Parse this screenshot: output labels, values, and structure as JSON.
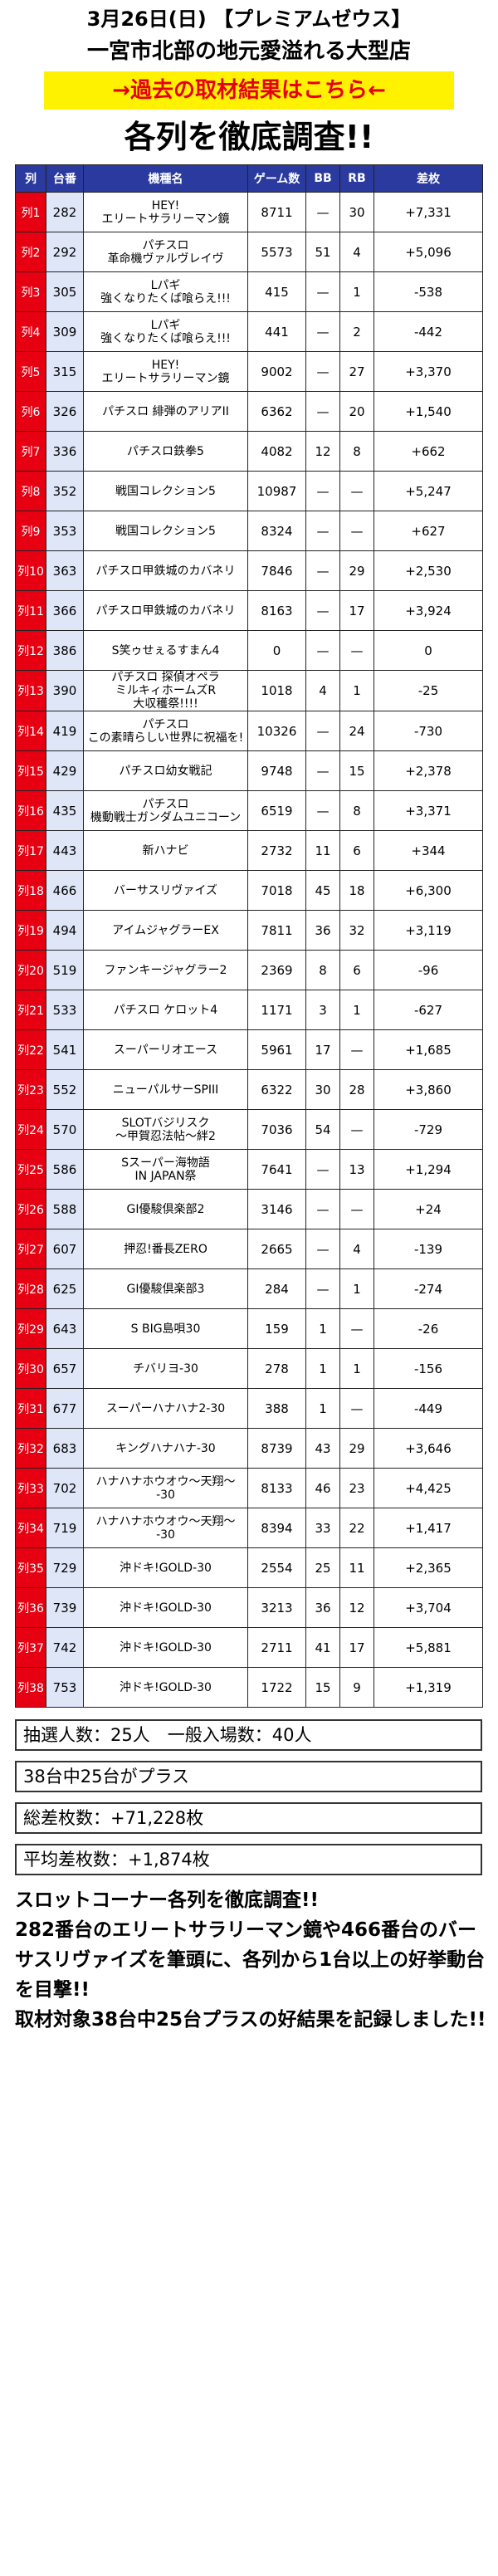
{
  "header": {
    "title_line1": "3月26日(日) 【プレミアムゼウス】",
    "title_line2": "一宮市北部の地元愛溢れる大型店",
    "past_results_link": "→過去の取材結果はこちら←",
    "heading": "各列を徹底調査!!"
  },
  "table": {
    "columns": [
      "列",
      "台番",
      "機種名",
      "ゲーム数",
      "BB",
      "RB",
      "差枚"
    ],
    "rows": [
      {
        "retsu": "列1",
        "dai": "282",
        "machine": "HEY!\nエリートサラリーマン鏡",
        "games": "8711",
        "bb": "—",
        "rb": "30",
        "diff": "+7,331"
      },
      {
        "retsu": "列2",
        "dai": "292",
        "machine": "パチスロ\n革命機ヴァルヴレイヴ",
        "games": "5573",
        "bb": "51",
        "rb": "4",
        "diff": "+5,096"
      },
      {
        "retsu": "列3",
        "dai": "305",
        "machine": "Lパギ\n強くなりたくば喰らえ!!!",
        "games": "415",
        "bb": "—",
        "rb": "1",
        "diff": "-538"
      },
      {
        "retsu": "列4",
        "dai": "309",
        "machine": "Lパギ\n強くなりたくば喰らえ!!!",
        "games": "441",
        "bb": "—",
        "rb": "2",
        "diff": "-442"
      },
      {
        "retsu": "列5",
        "dai": "315",
        "machine": "HEY!\nエリートサラリーマン鏡",
        "games": "9002",
        "bb": "—",
        "rb": "27",
        "diff": "+3,370"
      },
      {
        "retsu": "列6",
        "dai": "326",
        "machine": "パチスロ 緋弾のアリアII",
        "games": "6362",
        "bb": "—",
        "rb": "20",
        "diff": "+1,540"
      },
      {
        "retsu": "列7",
        "dai": "336",
        "machine": "パチスロ鉄拳5",
        "games": "4082",
        "bb": "12",
        "rb": "8",
        "diff": "+662"
      },
      {
        "retsu": "列8",
        "dai": "352",
        "machine": "戦国コレクション5",
        "games": "10987",
        "bb": "—",
        "rb": "—",
        "diff": "+5,247"
      },
      {
        "retsu": "列9",
        "dai": "353",
        "machine": "戦国コレクション5",
        "games": "8324",
        "bb": "—",
        "rb": "—",
        "diff": "+627"
      },
      {
        "retsu": "列10",
        "dai": "363",
        "machine": "パチスロ甲鉄城のカバネリ",
        "games": "7846",
        "bb": "—",
        "rb": "29",
        "diff": "+2,530"
      },
      {
        "retsu": "列11",
        "dai": "366",
        "machine": "パチスロ甲鉄城のカバネリ",
        "games": "8163",
        "bb": "—",
        "rb": "17",
        "diff": "+3,924"
      },
      {
        "retsu": "列12",
        "dai": "386",
        "machine": "S笑ゥせぇるすまん4",
        "games": "0",
        "bb": "—",
        "rb": "—",
        "diff": "0"
      },
      {
        "retsu": "列13",
        "dai": "390",
        "machine": "パチスロ 探偵オペラ\nミルキィホームズR\n大収穫祭!!!!",
        "games": "1018",
        "bb": "4",
        "rb": "1",
        "diff": "-25"
      },
      {
        "retsu": "列14",
        "dai": "419",
        "machine": "パチスロ\nこの素晴らしい世界に祝福を!",
        "games": "10326",
        "bb": "—",
        "rb": "24",
        "diff": "-730"
      },
      {
        "retsu": "列15",
        "dai": "429",
        "machine": "パチスロ幼女戦記",
        "games": "9748",
        "bb": "—",
        "rb": "15",
        "diff": "+2,378"
      },
      {
        "retsu": "列16",
        "dai": "435",
        "machine": "パチスロ\n機動戦士ガンダムユニコーン",
        "games": "6519",
        "bb": "—",
        "rb": "8",
        "diff": "+3,371"
      },
      {
        "retsu": "列17",
        "dai": "443",
        "machine": "新ハナビ",
        "games": "2732",
        "bb": "11",
        "rb": "6",
        "diff": "+344"
      },
      {
        "retsu": "列18",
        "dai": "466",
        "machine": "バーサスリヴァイズ",
        "games": "7018",
        "bb": "45",
        "rb": "18",
        "diff": "+6,300"
      },
      {
        "retsu": "列19",
        "dai": "494",
        "machine": "アイムジャグラーEX",
        "games": "7811",
        "bb": "36",
        "rb": "32",
        "diff": "+3,119"
      },
      {
        "retsu": "列20",
        "dai": "519",
        "machine": "ファンキージャグラー2",
        "games": "2369",
        "bb": "8",
        "rb": "6",
        "diff": "-96"
      },
      {
        "retsu": "列21",
        "dai": "533",
        "machine": "パチスロ ケロット4",
        "games": "1171",
        "bb": "3",
        "rb": "1",
        "diff": "-627"
      },
      {
        "retsu": "列22",
        "dai": "541",
        "machine": "スーパーリオエース",
        "games": "5961",
        "bb": "17",
        "rb": "—",
        "diff": "+1,685"
      },
      {
        "retsu": "列23",
        "dai": "552",
        "machine": "ニューパルサーSPIII",
        "games": "6322",
        "bb": "30",
        "rb": "28",
        "diff": "+3,860"
      },
      {
        "retsu": "列24",
        "dai": "570",
        "machine": "SLOTバジリスク\n〜甲賀忍法帖〜絆2",
        "games": "7036",
        "bb": "54",
        "rb": "—",
        "diff": "-729"
      },
      {
        "retsu": "列25",
        "dai": "586",
        "machine": "Sスーパー海物語\nIN JAPAN祭",
        "games": "7641",
        "bb": "—",
        "rb": "13",
        "diff": "+1,294"
      },
      {
        "retsu": "列26",
        "dai": "588",
        "machine": "GI優駿倶楽部2",
        "games": "3146",
        "bb": "—",
        "rb": "—",
        "diff": "+24"
      },
      {
        "retsu": "列27",
        "dai": "607",
        "machine": "押忍!番長ZERO",
        "games": "2665",
        "bb": "—",
        "rb": "4",
        "diff": "-139"
      },
      {
        "retsu": "列28",
        "dai": "625",
        "machine": "GI優駿倶楽部3",
        "games": "284",
        "bb": "—",
        "rb": "1",
        "diff": "-274"
      },
      {
        "retsu": "列29",
        "dai": "643",
        "machine": "S BIG島唄30",
        "games": "159",
        "bb": "1",
        "rb": "—",
        "diff": "-26"
      },
      {
        "retsu": "列30",
        "dai": "657",
        "machine": "チバリヨ-30",
        "games": "278",
        "bb": "1",
        "rb": "1",
        "diff": "-156"
      },
      {
        "retsu": "列31",
        "dai": "677",
        "machine": "スーパーハナハナ2-30",
        "games": "388",
        "bb": "1",
        "rb": "—",
        "diff": "-449"
      },
      {
        "retsu": "列32",
        "dai": "683",
        "machine": "キングハナハナ-30",
        "games": "8739",
        "bb": "43",
        "rb": "29",
        "diff": "+3,646"
      },
      {
        "retsu": "列33",
        "dai": "702",
        "machine": "ハナハナホウオウ〜天翔〜\n-30",
        "games": "8133",
        "bb": "46",
        "rb": "23",
        "diff": "+4,425"
      },
      {
        "retsu": "列34",
        "dai": "719",
        "machine": "ハナハナホウオウ〜天翔〜\n-30",
        "games": "8394",
        "bb": "33",
        "rb": "22",
        "diff": "+1,417"
      },
      {
        "retsu": "列35",
        "dai": "729",
        "machine": "沖ドキ!GOLD-30",
        "games": "2554",
        "bb": "25",
        "rb": "11",
        "diff": "+2,365"
      },
      {
        "retsu": "列36",
        "dai": "739",
        "machine": "沖ドキ!GOLD-30",
        "games": "3213",
        "bb": "36",
        "rb": "12",
        "diff": "+3,704"
      },
      {
        "retsu": "列37",
        "dai": "742",
        "machine": "沖ドキ!GOLD-30",
        "games": "2711",
        "bb": "41",
        "rb": "17",
        "diff": "+5,881"
      },
      {
        "retsu": "列38",
        "dai": "753",
        "machine": "沖ドキ!GOLD-30",
        "games": "1722",
        "bb": "15",
        "rb": "9",
        "diff": "+1,319"
      }
    ]
  },
  "summary": {
    "lottery": "抽選人数：25人　一般入場数：40人",
    "plus_count": "38台中25台がプラス",
    "total_diff": "総差枚数：+71,228枚",
    "avg_diff": "平均差枚数：+1,874枚"
  },
  "comment": {
    "line1": "スロットコーナー各列を徹底調査!!",
    "line2": "282番台のエリートサラリーマン鏡や466番台のバーサスリヴァイズを筆頭に、各列から1台以上の好挙動台を目撃!!",
    "line3": "取材対象38台中25台プラスの好結果を記録しました!!"
  }
}
